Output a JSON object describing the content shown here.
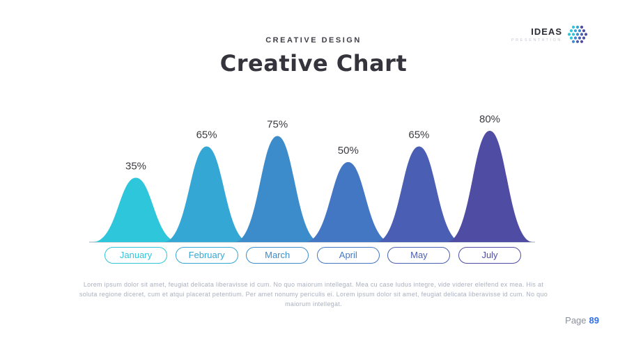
{
  "slide": {
    "subtitle": "CREATIVE DESIGN",
    "title": "Creative Chart",
    "body_text": "Lorem ipsum dolor sit amet, feugiat delicata liberavisse id cum. No quo maiorum intellegat. Mea cu case ludus integre, vide viderer eleifend ex mea. His at soluta regione diceret, cum et atqui placerat petentium. Per amet nonumy periculis ei. Lorem ipsum dolor sit amet, feugiat delicata liberavisse id cum. No quo maiorum intellegat.",
    "page_label": "Page",
    "page_number": "89"
  },
  "logo": {
    "name": "IDEAS",
    "tagline": "PRESENTATION"
  },
  "chart_data": {
    "type": "area",
    "title": "Creative Chart",
    "categories": [
      "January",
      "February",
      "March",
      "April",
      "May",
      "July"
    ],
    "values": [
      35,
      65,
      75,
      50,
      65,
      80
    ],
    "labels": [
      "35%",
      "65%",
      "75%",
      "50%",
      "65%",
      "80%"
    ],
    "unit": "%",
    "colors": [
      "#2EC6DB",
      "#35A7D4",
      "#3C8CCB",
      "#4377C4",
      "#4A5EB3",
      "#4F4CA4"
    ],
    "baseline_color": "#c2cad6",
    "ylim": [
      0,
      100
    ],
    "grid": false,
    "legend": "none"
  }
}
